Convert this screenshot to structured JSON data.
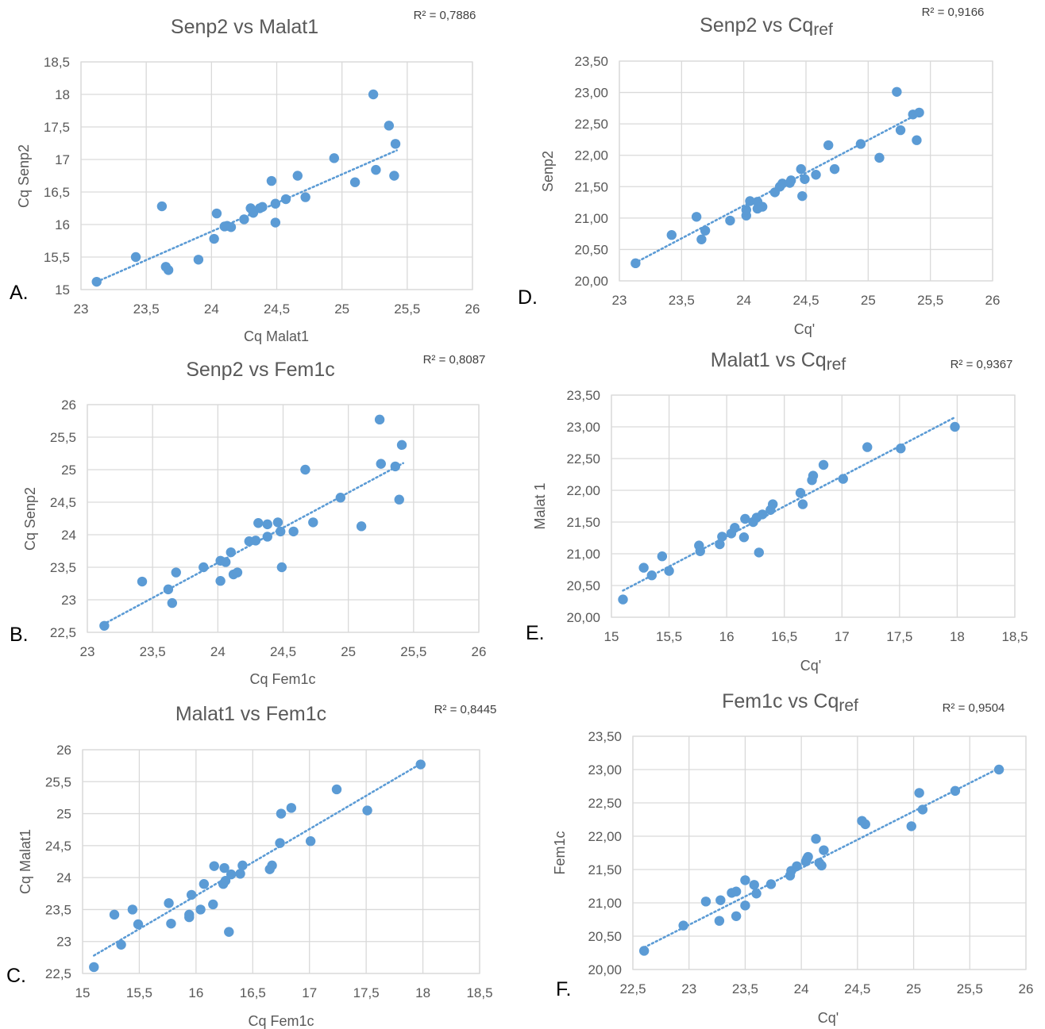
{
  "colors": {
    "point": "#5b9bd5",
    "trend": "#5b9bd5",
    "grid": "#d9d9d9",
    "text": "#595959"
  },
  "chart_data": [
    {
      "panel": "A.",
      "type": "scatter",
      "title": "Senp2 vs Malat1",
      "xlabel": "Cq Malat1",
      "ylabel": "Cq Senp2",
      "r2": "R² = 0,7886",
      "xlim": [
        23,
        26
      ],
      "ylim": [
        15,
        18.5
      ],
      "xticks": [
        23,
        23.5,
        24,
        24.5,
        25,
        25.5,
        26
      ],
      "xtick_labels": [
        "23",
        "23,5",
        "24",
        "24,5",
        "25",
        "25,5",
        "26"
      ],
      "yticks": [
        15,
        15.5,
        16,
        16.5,
        17,
        17.5,
        18,
        18.5
      ],
      "ytick_labels": [
        "15",
        "15,5",
        "16",
        "16,5",
        "17",
        "17,5",
        "18",
        "18,5"
      ],
      "trendline": {
        "x": [
          23.12,
          25.42
        ],
        "y": [
          15.12,
          17.14
        ]
      },
      "points": [
        [
          23.12,
          15.12
        ],
        [
          23.42,
          15.5
        ],
        [
          23.62,
          16.28
        ],
        [
          23.65,
          15.35
        ],
        [
          23.67,
          15.3
        ],
        [
          23.9,
          15.46
        ],
        [
          24.02,
          15.78
        ],
        [
          24.04,
          16.17
        ],
        [
          24.1,
          15.97
        ],
        [
          24.12,
          15.98
        ],
        [
          24.15,
          15.96
        ],
        [
          24.25,
          16.08
        ],
        [
          24.3,
          16.25
        ],
        [
          24.32,
          16.18
        ],
        [
          24.37,
          16.25
        ],
        [
          24.39,
          16.27
        ],
        [
          24.46,
          16.67
        ],
        [
          24.49,
          16.32
        ],
        [
          24.49,
          16.03
        ],
        [
          24.57,
          16.39
        ],
        [
          24.66,
          16.75
        ],
        [
          24.72,
          16.42
        ],
        [
          24.94,
          17.02
        ],
        [
          25.1,
          16.65
        ],
        [
          25.24,
          18.0
        ],
        [
          25.26,
          16.84
        ],
        [
          25.36,
          17.52
        ],
        [
          25.4,
          16.75
        ],
        [
          25.41,
          17.24
        ]
      ]
    },
    {
      "panel": "B.",
      "type": "scatter",
      "title": "Senp2 vs Fem1c",
      "xlabel": "Cq Fem1c",
      "ylabel": "Cq Senp2",
      "r2": "R² = 0,8087",
      "xlim": [
        23,
        26
      ],
      "ylim": [
        22.5,
        26
      ],
      "xticks": [
        23,
        23.5,
        24,
        24.5,
        25,
        25.5,
        26
      ],
      "xtick_labels": [
        "23",
        "23,5",
        "24",
        "24,5",
        "25",
        "25,5",
        "26"
      ],
      "yticks": [
        22.5,
        23,
        23.5,
        24,
        24.5,
        25,
        25.5,
        26
      ],
      "ytick_labels": [
        "22,5",
        "23",
        "23,5",
        "24",
        "24,5",
        "25",
        "25,5",
        "26"
      ],
      "trendline": {
        "x": [
          23.12,
          25.42
        ],
        "y": [
          22.62,
          25.1
        ]
      },
      "points": [
        [
          23.13,
          22.6
        ],
        [
          23.42,
          23.28
        ],
        [
          23.62,
          23.16
        ],
        [
          23.65,
          22.95
        ],
        [
          23.68,
          23.42
        ],
        [
          23.89,
          23.5
        ],
        [
          24.02,
          23.29
        ],
        [
          24.02,
          23.6
        ],
        [
          24.06,
          23.58
        ],
        [
          24.1,
          23.73
        ],
        [
          24.12,
          23.39
        ],
        [
          24.15,
          23.42
        ],
        [
          24.24,
          23.9
        ],
        [
          24.29,
          23.91
        ],
        [
          24.31,
          24.18
        ],
        [
          24.38,
          23.97
        ],
        [
          24.38,
          24.16
        ],
        [
          24.46,
          24.19
        ],
        [
          24.48,
          24.05
        ],
        [
          24.49,
          23.5
        ],
        [
          24.58,
          24.05
        ],
        [
          24.67,
          25.0
        ],
        [
          24.73,
          24.19
        ],
        [
          24.94,
          24.57
        ],
        [
          25.1,
          24.13
        ],
        [
          25.24,
          25.77
        ],
        [
          25.25,
          25.09
        ],
        [
          25.36,
          25.05
        ],
        [
          25.39,
          24.54
        ],
        [
          25.41,
          25.38
        ]
      ]
    },
    {
      "panel": "C.",
      "type": "scatter",
      "title": "Malat1 vs Fem1c",
      "xlabel": "Cq Fem1c",
      "ylabel": "Cq Malat1",
      "r2": "R² = 0,8445",
      "xlim": [
        15,
        18.5
      ],
      "ylim": [
        22.5,
        26
      ],
      "xticks": [
        15,
        15.5,
        16,
        16.5,
        17,
        17.5,
        18,
        18.5
      ],
      "xtick_labels": [
        "15",
        "15,5",
        "16",
        "16,5",
        "17",
        "17,5",
        "18",
        "18,5"
      ],
      "yticks": [
        22.5,
        23,
        23.5,
        24,
        24.5,
        25,
        25.5,
        26
      ],
      "ytick_labels": [
        "22,5",
        "23",
        "23,5",
        "24",
        "24,5",
        "25",
        "25,5",
        "26"
      ],
      "trendline": {
        "x": [
          15.1,
          17.98
        ],
        "y": [
          22.78,
          25.78
        ]
      },
      "points": [
        [
          15.1,
          22.6
        ],
        [
          15.28,
          23.42
        ],
        [
          15.34,
          22.95
        ],
        [
          15.44,
          23.5
        ],
        [
          15.49,
          23.27
        ],
        [
          15.76,
          23.6
        ],
        [
          15.78,
          23.28
        ],
        [
          15.94,
          23.38
        ],
        [
          15.94,
          23.42
        ],
        [
          15.96,
          23.73
        ],
        [
          16.04,
          23.5
        ],
        [
          16.07,
          23.9
        ],
        [
          16.15,
          23.58
        ],
        [
          16.16,
          24.18
        ],
        [
          16.24,
          23.9
        ],
        [
          16.25,
          24.15
        ],
        [
          16.26,
          23.95
        ],
        [
          16.29,
          23.15
        ],
        [
          16.31,
          24.05
        ],
        [
          16.39,
          24.06
        ],
        [
          16.41,
          24.19
        ],
        [
          16.65,
          24.13
        ],
        [
          16.67,
          24.19
        ],
        [
          16.74,
          24.54
        ],
        [
          16.75,
          25.0
        ],
        [
          16.84,
          25.09
        ],
        [
          17.01,
          24.57
        ],
        [
          17.24,
          25.38
        ],
        [
          17.51,
          25.05
        ],
        [
          17.98,
          25.77
        ]
      ]
    },
    {
      "panel": "D.",
      "type": "scatter",
      "title_main": "Senp2 vs Cq",
      "title_sub": "ref",
      "xlabel": "Cq'",
      "ylabel": "Senp2",
      "r2": "R² = 0,9166",
      "xlim": [
        23,
        26
      ],
      "ylim": [
        20,
        23.5
      ],
      "xticks": [
        23,
        23.5,
        24,
        24.5,
        25,
        25.5,
        26
      ],
      "xtick_labels": [
        "23",
        "23,5",
        "24",
        "24,5",
        "25",
        "25,5",
        "26"
      ],
      "yticks": [
        20,
        20.5,
        21,
        21.5,
        22,
        22.5,
        23,
        23.5
      ],
      "ytick_labels": [
        "20,00",
        "20,50",
        "21,00",
        "21,50",
        "22,00",
        "22,50",
        "23,00",
        "23,50"
      ],
      "trendline": {
        "x": [
          23.12,
          25.42
        ],
        "y": [
          20.28,
          22.68
        ]
      },
      "points": [
        [
          23.13,
          20.28
        ],
        [
          23.42,
          20.73
        ],
        [
          23.62,
          21.02
        ],
        [
          23.66,
          20.66
        ],
        [
          23.69,
          20.8
        ],
        [
          23.89,
          20.96
        ],
        [
          24.02,
          21.04
        ],
        [
          24.02,
          21.13
        ],
        [
          24.05,
          21.27
        ],
        [
          24.11,
          21.26
        ],
        [
          24.11,
          21.15
        ],
        [
          24.15,
          21.18
        ],
        [
          24.25,
          21.41
        ],
        [
          24.29,
          21.5
        ],
        [
          24.31,
          21.55
        ],
        [
          24.37,
          21.56
        ],
        [
          24.38,
          21.6
        ],
        [
          24.46,
          21.78
        ],
        [
          24.47,
          21.35
        ],
        [
          24.49,
          21.62
        ],
        [
          24.58,
          21.69
        ],
        [
          24.68,
          22.16
        ],
        [
          24.73,
          21.78
        ],
        [
          24.94,
          22.18
        ],
        [
          25.09,
          21.96
        ],
        [
          25.23,
          23.01
        ],
        [
          25.26,
          22.4
        ],
        [
          25.36,
          22.65
        ],
        [
          25.39,
          22.24
        ],
        [
          25.41,
          22.68
        ]
      ]
    },
    {
      "panel": "E.",
      "type": "scatter",
      "title_main": "Malat1 vs Cq",
      "title_sub": "ref",
      "xlabel": "Cq'",
      "ylabel": "Malat 1",
      "r2": "R² = 0,9367",
      "xlim": [
        15,
        18.5
      ],
      "ylim": [
        20,
        23.5
      ],
      "xticks": [
        15,
        15.5,
        16,
        16.5,
        17,
        17.5,
        18,
        18.5
      ],
      "xtick_labels": [
        "15",
        "15,5",
        "16",
        "16,5",
        "17",
        "17,5",
        "18",
        "18,5"
      ],
      "yticks": [
        20,
        20.5,
        21,
        21.5,
        22,
        22.5,
        23,
        23.5
      ],
      "ytick_labels": [
        "20,00",
        "20,50",
        "21,00",
        "21,50",
        "22,00",
        "22,50",
        "23,00",
        "23,50"
      ],
      "trendline": {
        "x": [
          15.1,
          17.98
        ],
        "y": [
          20.42,
          23.15
        ]
      },
      "points": [
        [
          15.1,
          20.28
        ],
        [
          15.28,
          20.78
        ],
        [
          15.35,
          20.66
        ],
        [
          15.44,
          20.96
        ],
        [
          15.5,
          20.73
        ],
        [
          15.76,
          21.13
        ],
        [
          15.77,
          21.04
        ],
        [
          15.94,
          21.15
        ],
        [
          15.96,
          21.27
        ],
        [
          16.04,
          21.32
        ],
        [
          16.07,
          21.41
        ],
        [
          16.15,
          21.26
        ],
        [
          16.16,
          21.55
        ],
        [
          16.23,
          21.5
        ],
        [
          16.26,
          21.57
        ],
        [
          16.28,
          21.02
        ],
        [
          16.31,
          21.62
        ],
        [
          16.38,
          21.69
        ],
        [
          16.4,
          21.78
        ],
        [
          16.64,
          21.96
        ],
        [
          16.66,
          21.78
        ],
        [
          16.74,
          22.16
        ],
        [
          16.75,
          22.23
        ],
        [
          16.84,
          22.4
        ],
        [
          17.01,
          22.18
        ],
        [
          17.22,
          22.68
        ],
        [
          17.51,
          22.66
        ],
        [
          17.98,
          23.0
        ]
      ]
    },
    {
      "panel": "F.",
      "type": "scatter",
      "title_main": "Fem1c vs Cq",
      "title_sub": "ref",
      "xlabel": "Cq'",
      "ylabel": "Fem1c",
      "r2": "R² = 0,9504",
      "xlim": [
        22.5,
        26
      ],
      "ylim": [
        20,
        23.5
      ],
      "xticks": [
        22.5,
        23,
        23.5,
        24,
        24.5,
        25,
        25.5,
        26
      ],
      "xtick_labels": [
        "22,5",
        "23",
        "23,5",
        "24",
        "24,5",
        "25",
        "25,5",
        "26"
      ],
      "yticks": [
        20,
        20.5,
        21,
        21.5,
        22,
        22.5,
        23,
        23.5
      ],
      "ytick_labels": [
        "20,00",
        "20,50",
        "21,00",
        "21,50",
        "22,00",
        "22,50",
        "23,00",
        "23,50"
      ],
      "trendline": {
        "x": [
          22.6,
          25.76
        ],
        "y": [
          20.33,
          23.02
        ]
      },
      "points": [
        [
          22.6,
          20.28
        ],
        [
          22.95,
          20.66
        ],
        [
          23.15,
          21.02
        ],
        [
          23.27,
          20.73
        ],
        [
          23.28,
          21.04
        ],
        [
          23.38,
          21.15
        ],
        [
          23.42,
          20.8
        ],
        [
          23.42,
          21.17
        ],
        [
          23.5,
          21.34
        ],
        [
          23.5,
          20.96
        ],
        [
          23.58,
          21.27
        ],
        [
          23.6,
          21.14
        ],
        [
          23.73,
          21.28
        ],
        [
          23.9,
          21.41
        ],
        [
          23.91,
          21.48
        ],
        [
          23.96,
          21.55
        ],
        [
          24.04,
          21.62
        ],
        [
          24.05,
          21.66
        ],
        [
          24.06,
          21.69
        ],
        [
          24.13,
          21.96
        ],
        [
          24.16,
          21.6
        ],
        [
          24.18,
          21.56
        ],
        [
          24.2,
          21.79
        ],
        [
          24.54,
          22.23
        ],
        [
          24.57,
          22.18
        ],
        [
          24.98,
          22.15
        ],
        [
          25.05,
          22.65
        ],
        [
          25.08,
          22.4
        ],
        [
          25.37,
          22.68
        ],
        [
          25.76,
          23.0
        ]
      ]
    }
  ]
}
